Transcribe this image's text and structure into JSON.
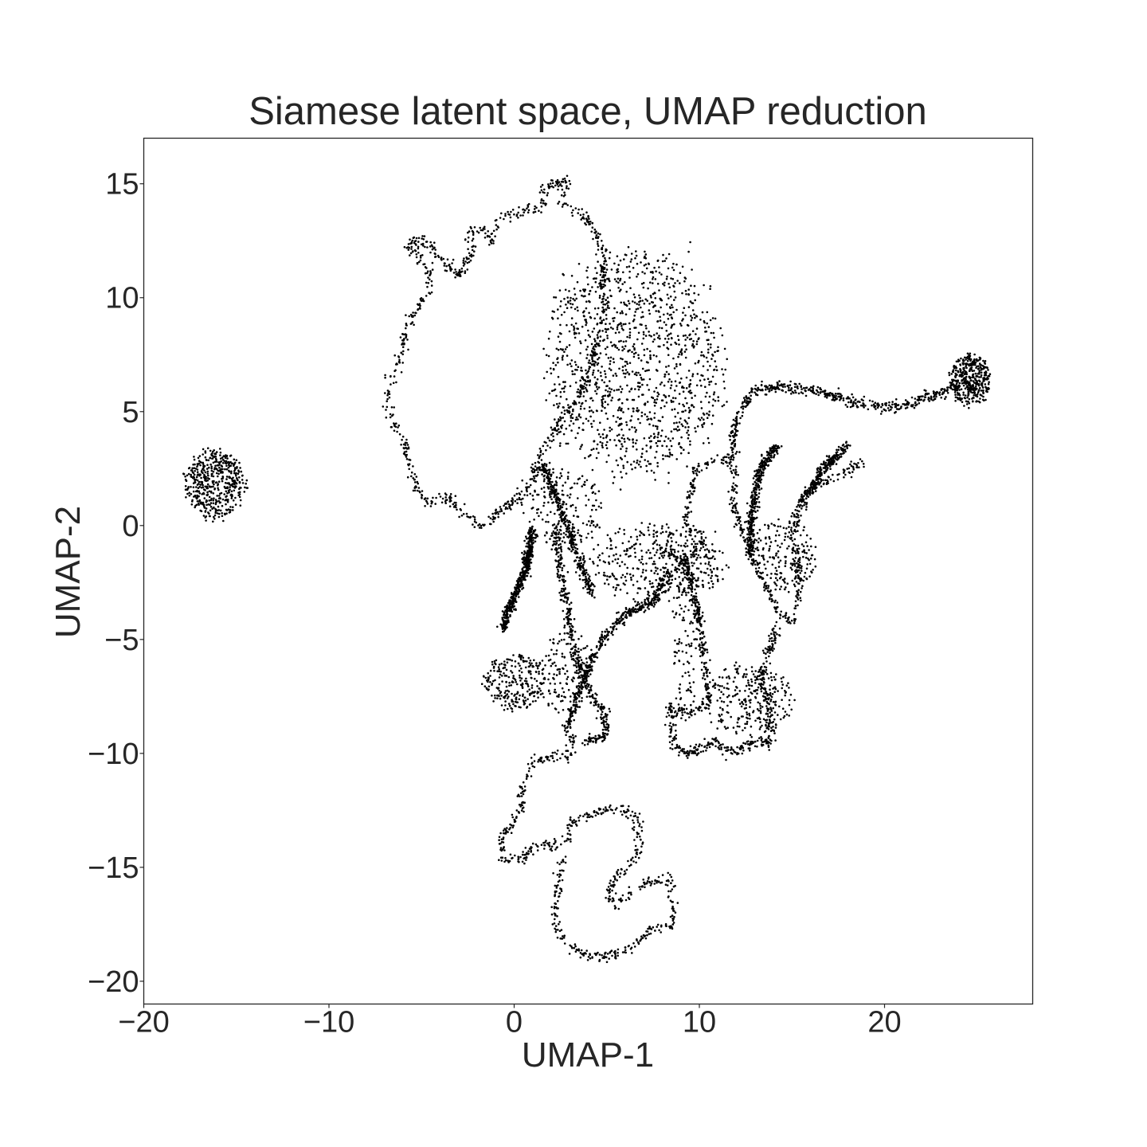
{
  "chart_data": {
    "type": "scatter",
    "title": "Siamese latent space, UMAP reduction",
    "xlabel": "UMAP-1",
    "ylabel": "UMAP-2",
    "xlim": [
      -20,
      28
    ],
    "ylim": [
      -21,
      17
    ],
    "xticks": [
      -20,
      -10,
      0,
      10,
      20
    ],
    "xtick_labels": [
      "−20",
      "−10",
      "0",
      "10",
      "20"
    ],
    "yticks": [
      15,
      10,
      5,
      0,
      -5,
      -10,
      -15,
      -20
    ],
    "ytick_labels": [
      "15",
      "10",
      "5",
      "0",
      "−5",
      "−10",
      "−15",
      "−20"
    ],
    "grid": false,
    "legend": "none",
    "point_color": "#000000",
    "clusters": [
      {
        "shape": "blob",
        "cx": -16.2,
        "cy": 1.8,
        "rx": 1.6,
        "ry": 1.5,
        "n": 500
      },
      {
        "shape": "blob",
        "cx": 24.6,
        "cy": 6.4,
        "rx": 1.1,
        "ry": 1.1,
        "n": 420
      },
      {
        "shape": "blob",
        "cx": 6.5,
        "cy": 7.2,
        "rx": 4.8,
        "ry": 5.0,
        "n": 1300
      },
      {
        "shape": "blob",
        "cx": 2.5,
        "cy": 0.8,
        "rx": 2.2,
        "ry": 1.8,
        "n": 200
      },
      {
        "shape": "blob",
        "cx": 0.0,
        "cy": -6.9,
        "rx": 1.6,
        "ry": 1.2,
        "n": 260
      },
      {
        "shape": "blob",
        "cx": 8.0,
        "cy": -1.6,
        "rx": 3.8,
        "ry": 1.6,
        "n": 380
      },
      {
        "shape": "blob",
        "cx": 12.8,
        "cy": -7.7,
        "rx": 2.4,
        "ry": 1.6,
        "n": 260
      },
      {
        "shape": "blob",
        "cx": 14.5,
        "cy": -1.3,
        "rx": 1.8,
        "ry": 1.6,
        "n": 200
      },
      {
        "shape": "blob",
        "cx": 2.8,
        "cy": -6.5,
        "rx": 1.5,
        "ry": 1.8,
        "n": 140
      },
      {
        "shape": "blob",
        "cx": 9.3,
        "cy": -4.8,
        "rx": 0.8,
        "ry": 3.6,
        "n": 120
      }
    ],
    "traces": [
      {
        "n": 900,
        "path": [
          [
            1.5,
            13.9
          ],
          [
            1.7,
            14.9
          ],
          [
            2.8,
            15.1
          ],
          [
            2.6,
            14.2
          ],
          [
            3.4,
            13.8
          ],
          [
            4.1,
            13.3
          ],
          [
            4.6,
            12.6
          ],
          [
            4.9,
            11.6
          ],
          [
            4.7,
            10.5
          ],
          [
            4.9,
            9.4
          ],
          [
            4.5,
            8.2
          ],
          [
            4.2,
            7.0
          ],
          [
            3.6,
            5.8
          ],
          [
            2.6,
            4.6
          ],
          [
            1.6,
            3.4
          ],
          [
            1.0,
            2.0
          ],
          [
            0.2,
            1.2
          ],
          [
            -0.8,
            0.6
          ],
          [
            -1.7,
            0.0
          ],
          [
            -2.8,
            0.6
          ],
          [
            -3.6,
            1.3
          ],
          [
            -4.8,
            1.0
          ],
          [
            -5.6,
            2.3
          ],
          [
            -5.9,
            3.6
          ],
          [
            -6.6,
            4.6
          ],
          [
            -6.8,
            5.2
          ],
          [
            -6.8,
            6.3
          ],
          [
            -6.1,
            7.4
          ],
          [
            -5.8,
            8.6
          ],
          [
            -5.1,
            9.7
          ],
          [
            -4.6,
            10.5
          ],
          [
            -4.6,
            11.2
          ],
          [
            -5.1,
            11.8
          ],
          [
            -5.8,
            12.2
          ],
          [
            -5.2,
            12.6
          ],
          [
            -4.4,
            12.2
          ],
          [
            -3.8,
            11.6
          ],
          [
            -3.0,
            11.0
          ],
          [
            -2.3,
            12.0
          ],
          [
            -2.4,
            12.9
          ],
          [
            -1.7,
            13.0
          ],
          [
            -1.2,
            12.5
          ],
          [
            -0.8,
            13.5
          ],
          [
            0.3,
            13.8
          ],
          [
            1.5,
            13.9
          ]
        ]
      },
      {
        "n": 700,
        "path": [
          [
            8.0,
            -1.0
          ],
          [
            9.2,
            -1.5
          ],
          [
            10.0,
            -4.0
          ],
          [
            10.4,
            -6.8
          ],
          [
            10.5,
            -7.8
          ],
          [
            9.5,
            -8.2
          ],
          [
            8.4,
            -8.0
          ],
          [
            8.6,
            -9.6
          ],
          [
            9.4,
            -10.0
          ],
          [
            10.8,
            -9.5
          ],
          [
            11.8,
            -10.0
          ],
          [
            12.8,
            -9.5
          ],
          [
            13.8,
            -9.5
          ],
          [
            13.7,
            -7.8
          ],
          [
            13.3,
            -6.5
          ],
          [
            13.8,
            -5.5
          ],
          [
            14.2,
            -4.3
          ]
        ]
      },
      {
        "n": 500,
        "path": [
          [
            8.8,
            -2.0
          ],
          [
            9.8,
            -1.2
          ],
          [
            10.2,
            -0.5
          ],
          [
            9.2,
            0.0
          ],
          [
            9.6,
            1.5
          ],
          [
            9.8,
            2.5
          ],
          [
            10.8,
            2.9
          ],
          [
            11.6,
            2.9
          ],
          [
            12.0,
            2.3
          ],
          [
            11.8,
            1.0
          ],
          [
            12.2,
            0.0
          ],
          [
            12.8,
            -1.3
          ],
          [
            13.6,
            -2.7
          ],
          [
            14.2,
            -3.7
          ],
          [
            15.0,
            -4.2
          ],
          [
            15.4,
            -2.8
          ],
          [
            15.3,
            -1.5
          ],
          [
            15.0,
            -0.5
          ],
          [
            15.3,
            0.6
          ],
          [
            16.0,
            1.6
          ],
          [
            17.0,
            2.0
          ],
          [
            18.0,
            2.4
          ],
          [
            18.8,
            2.8
          ]
        ]
      },
      {
        "n": 500,
        "path": [
          [
            11.8,
            2.9
          ],
          [
            12.0,
            4.5
          ],
          [
            12.5,
            5.5
          ],
          [
            13.2,
            6.0
          ],
          [
            14.5,
            6.1
          ],
          [
            16.5,
            5.9
          ],
          [
            18.5,
            5.4
          ],
          [
            19.8,
            5.2
          ],
          [
            20.8,
            5.2
          ],
          [
            22.0,
            5.5
          ],
          [
            23.2,
            5.9
          ],
          [
            24.0,
            6.1
          ]
        ]
      },
      {
        "n": 380,
        "path": [
          [
            12.8,
            -1.3
          ],
          [
            12.8,
            0.5
          ],
          [
            13.3,
            2.5
          ],
          [
            14.2,
            3.5
          ]
        ]
      },
      {
        "n": 260,
        "path": [
          [
            15.5,
            1.0
          ],
          [
            16.7,
            2.5
          ],
          [
            18.0,
            3.5
          ]
        ]
      },
      {
        "n": 700,
        "path": [
          [
            3.2,
            -9.0
          ],
          [
            3.0,
            -10.1
          ],
          [
            2.0,
            -10.2
          ],
          [
            1.0,
            -10.3
          ],
          [
            0.5,
            -11.5
          ],
          [
            0.4,
            -12.5
          ],
          [
            -0.3,
            -13.3
          ],
          [
            -0.8,
            -13.8
          ],
          [
            -0.6,
            -14.6
          ],
          [
            0.5,
            -14.6
          ],
          [
            1.2,
            -14.0
          ],
          [
            2.2,
            -14.0
          ],
          [
            2.8,
            -14.0
          ],
          [
            3.0,
            -13.0
          ],
          [
            3.8,
            -12.8
          ],
          [
            4.8,
            -12.5
          ],
          [
            5.8,
            -12.4
          ],
          [
            6.6,
            -12.8
          ],
          [
            6.8,
            -14.0
          ],
          [
            6.2,
            -14.9
          ],
          [
            5.5,
            -15.3
          ],
          [
            5.1,
            -16.2
          ],
          [
            5.5,
            -16.7
          ],
          [
            6.0,
            -16.3
          ],
          [
            7.0,
            -15.7
          ],
          [
            8.5,
            -15.5
          ],
          [
            8.6,
            -16.8
          ],
          [
            8.5,
            -17.6
          ],
          [
            7.6,
            -17.6
          ],
          [
            6.8,
            -18.2
          ],
          [
            5.8,
            -18.8
          ],
          [
            4.5,
            -18.9
          ],
          [
            3.5,
            -18.7
          ],
          [
            2.6,
            -18.2
          ],
          [
            2.2,
            -17.5
          ],
          [
            2.3,
            -16.0
          ],
          [
            2.7,
            -14.5
          ]
        ]
      },
      {
        "n": 500,
        "path": [
          [
            1.0,
            -0.2
          ],
          [
            0.6,
            -2.0
          ],
          [
            -0.2,
            -3.5
          ],
          [
            -0.6,
            -4.5
          ]
        ]
      },
      {
        "n": 400,
        "path": [
          [
            2.2,
            0.0
          ],
          [
            2.6,
            -2.5
          ],
          [
            3.0,
            -4.5
          ],
          [
            3.4,
            -6.0
          ],
          [
            4.4,
            -7.8
          ],
          [
            5.0,
            -8.4
          ],
          [
            4.8,
            -9.3
          ],
          [
            3.8,
            -9.5
          ]
        ]
      },
      {
        "n": 350,
        "path": [
          [
            1.5,
            2.8
          ],
          [
            2.6,
            0.5
          ],
          [
            3.5,
            -1.5
          ],
          [
            4.2,
            -3.0
          ]
        ]
      },
      {
        "n": 450,
        "path": [
          [
            2.8,
            -9.0
          ],
          [
            3.6,
            -7.0
          ],
          [
            4.4,
            -5.5
          ],
          [
            5.8,
            -4.0
          ],
          [
            7.4,
            -3.4
          ],
          [
            8.4,
            -2.0
          ]
        ]
      }
    ]
  }
}
